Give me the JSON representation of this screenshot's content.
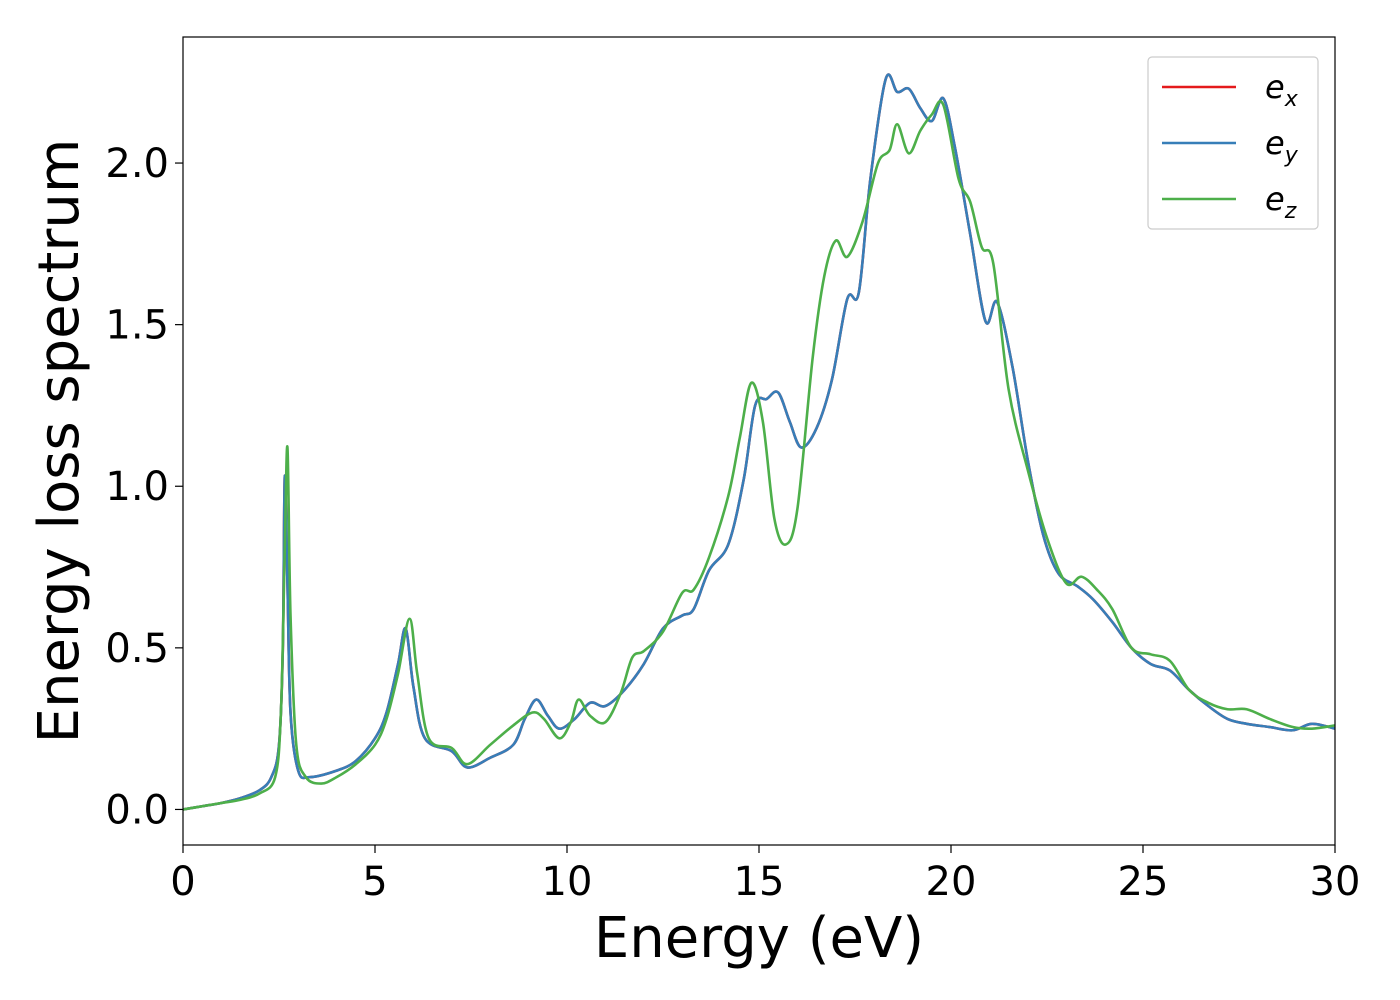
{
  "chart_data": {
    "type": "line",
    "title": "",
    "xlabel": "Energy (eV)",
    "ylabel": "Energy loss spectrum",
    "xlim": [
      0,
      30
    ],
    "ylim": [
      -0.11,
      2.39
    ],
    "xticks": [
      0,
      5,
      10,
      15,
      20,
      25,
      30
    ],
    "xtick_labels": [
      "0",
      "5",
      "10",
      "15",
      "20",
      "25",
      "30"
    ],
    "yticks": [
      0.0,
      0.5,
      1.0,
      1.5,
      2.0
    ],
    "ytick_labels": [
      "0.0",
      "0.5",
      "1.0",
      "1.5",
      "2.0"
    ],
    "grid": false,
    "legend_position": "top-right",
    "series": [
      {
        "name": "e",
        "subscript": "x",
        "color": "#e41a1c",
        "points": [
          [
            0,
            0
          ],
          [
            0.5,
            0.01
          ],
          [
            1,
            0.02
          ],
          [
            1.5,
            0.035
          ],
          [
            2,
            0.06
          ],
          [
            2.3,
            0.1
          ],
          [
            2.5,
            0.2
          ],
          [
            2.6,
            0.5
          ],
          [
            2.65,
            1.03
          ],
          [
            2.72,
            0.7
          ],
          [
            2.8,
            0.3
          ],
          [
            3,
            0.12
          ],
          [
            3.3,
            0.1
          ],
          [
            4,
            0.12
          ],
          [
            4.5,
            0.15
          ],
          [
            5,
            0.22
          ],
          [
            5.3,
            0.3
          ],
          [
            5.6,
            0.45
          ],
          [
            5.8,
            0.56
          ],
          [
            6,
            0.38
          ],
          [
            6.3,
            0.22
          ],
          [
            7,
            0.18
          ],
          [
            7.4,
            0.13
          ],
          [
            8,
            0.16
          ],
          [
            8.6,
            0.2
          ],
          [
            8.9,
            0.28
          ],
          [
            9.2,
            0.34
          ],
          [
            9.5,
            0.29
          ],
          [
            9.8,
            0.25
          ],
          [
            10.2,
            0.28
          ],
          [
            10.6,
            0.33
          ],
          [
            11,
            0.32
          ],
          [
            11.5,
            0.37
          ],
          [
            12,
            0.45
          ],
          [
            12.5,
            0.56
          ],
          [
            13,
            0.6
          ],
          [
            13.3,
            0.62
          ],
          [
            13.7,
            0.74
          ],
          [
            14.2,
            0.82
          ],
          [
            14.6,
            1.02
          ],
          [
            14.9,
            1.25
          ],
          [
            15.2,
            1.27
          ],
          [
            15.5,
            1.29
          ],
          [
            15.8,
            1.2
          ],
          [
            16.1,
            1.12
          ],
          [
            16.5,
            1.18
          ],
          [
            16.9,
            1.33
          ],
          [
            17.3,
            1.58
          ],
          [
            17.6,
            1.6
          ],
          [
            17.9,
            1.95
          ],
          [
            18.3,
            2.26
          ],
          [
            18.6,
            2.22
          ],
          [
            18.9,
            2.23
          ],
          [
            19.2,
            2.17
          ],
          [
            19.5,
            2.13
          ],
          [
            19.8,
            2.2
          ],
          [
            20.1,
            2.05
          ],
          [
            20.5,
            1.78
          ],
          [
            20.9,
            1.51
          ],
          [
            21.2,
            1.57
          ],
          [
            21.6,
            1.37
          ],
          [
            22,
            1.08
          ],
          [
            22.4,
            0.85
          ],
          [
            22.8,
            0.73
          ],
          [
            23.3,
            0.69
          ],
          [
            23.7,
            0.65
          ],
          [
            24.2,
            0.58
          ],
          [
            24.7,
            0.5
          ],
          [
            25.2,
            0.45
          ],
          [
            25.7,
            0.43
          ],
          [
            26.2,
            0.37
          ],
          [
            26.7,
            0.32
          ],
          [
            27.2,
            0.28
          ],
          [
            27.7,
            0.265
          ],
          [
            28.3,
            0.255
          ],
          [
            28.9,
            0.245
          ],
          [
            29.4,
            0.265
          ],
          [
            30,
            0.25
          ]
        ]
      },
      {
        "name": "e",
        "subscript": "y",
        "color": "#377eb8",
        "points": [
          [
            0,
            0
          ],
          [
            0.5,
            0.01
          ],
          [
            1,
            0.02
          ],
          [
            1.5,
            0.035
          ],
          [
            2,
            0.06
          ],
          [
            2.3,
            0.1
          ],
          [
            2.5,
            0.2
          ],
          [
            2.6,
            0.5
          ],
          [
            2.65,
            1.03
          ],
          [
            2.72,
            0.7
          ],
          [
            2.8,
            0.3
          ],
          [
            3,
            0.12
          ],
          [
            3.3,
            0.1
          ],
          [
            4,
            0.12
          ],
          [
            4.5,
            0.15
          ],
          [
            5,
            0.22
          ],
          [
            5.3,
            0.3
          ],
          [
            5.6,
            0.45
          ],
          [
            5.8,
            0.56
          ],
          [
            6,
            0.38
          ],
          [
            6.3,
            0.22
          ],
          [
            7,
            0.18
          ],
          [
            7.4,
            0.13
          ],
          [
            8,
            0.16
          ],
          [
            8.6,
            0.2
          ],
          [
            8.9,
            0.28
          ],
          [
            9.2,
            0.34
          ],
          [
            9.5,
            0.29
          ],
          [
            9.8,
            0.25
          ],
          [
            10.2,
            0.28
          ],
          [
            10.6,
            0.33
          ],
          [
            11,
            0.32
          ],
          [
            11.5,
            0.37
          ],
          [
            12,
            0.45
          ],
          [
            12.5,
            0.56
          ],
          [
            13,
            0.6
          ],
          [
            13.3,
            0.62
          ],
          [
            13.7,
            0.74
          ],
          [
            14.2,
            0.82
          ],
          [
            14.6,
            1.02
          ],
          [
            14.9,
            1.25
          ],
          [
            15.2,
            1.27
          ],
          [
            15.5,
            1.29
          ],
          [
            15.8,
            1.2
          ],
          [
            16.1,
            1.12
          ],
          [
            16.5,
            1.18
          ],
          [
            16.9,
            1.33
          ],
          [
            17.3,
            1.58
          ],
          [
            17.6,
            1.6
          ],
          [
            17.9,
            1.95
          ],
          [
            18.3,
            2.26
          ],
          [
            18.6,
            2.22
          ],
          [
            18.9,
            2.23
          ],
          [
            19.2,
            2.17
          ],
          [
            19.5,
            2.13
          ],
          [
            19.8,
            2.2
          ],
          [
            20.1,
            2.05
          ],
          [
            20.5,
            1.78
          ],
          [
            20.9,
            1.51
          ],
          [
            21.2,
            1.57
          ],
          [
            21.6,
            1.37
          ],
          [
            22,
            1.08
          ],
          [
            22.4,
            0.85
          ],
          [
            22.8,
            0.73
          ],
          [
            23.3,
            0.69
          ],
          [
            23.7,
            0.65
          ],
          [
            24.2,
            0.58
          ],
          [
            24.7,
            0.5
          ],
          [
            25.2,
            0.45
          ],
          [
            25.7,
            0.43
          ],
          [
            26.2,
            0.37
          ],
          [
            26.7,
            0.32
          ],
          [
            27.2,
            0.28
          ],
          [
            27.7,
            0.265
          ],
          [
            28.3,
            0.255
          ],
          [
            28.9,
            0.245
          ],
          [
            29.4,
            0.265
          ],
          [
            30,
            0.25
          ]
        ]
      },
      {
        "name": "e",
        "subscript": "z",
        "color": "#4daf4a",
        "points": [
          [
            0,
            0
          ],
          [
            0.5,
            0.01
          ],
          [
            1,
            0.02
          ],
          [
            1.5,
            0.03
          ],
          [
            2,
            0.05
          ],
          [
            2.4,
            0.1
          ],
          [
            2.55,
            0.3
          ],
          [
            2.65,
            0.8
          ],
          [
            2.72,
            1.12
          ],
          [
            2.8,
            0.6
          ],
          [
            2.95,
            0.2
          ],
          [
            3.2,
            0.1
          ],
          [
            3.6,
            0.08
          ],
          [
            4,
            0.1
          ],
          [
            4.5,
            0.14
          ],
          [
            5,
            0.2
          ],
          [
            5.3,
            0.28
          ],
          [
            5.6,
            0.42
          ],
          [
            5.9,
            0.59
          ],
          [
            6.1,
            0.42
          ],
          [
            6.4,
            0.22
          ],
          [
            7,
            0.19
          ],
          [
            7.4,
            0.14
          ],
          [
            8,
            0.2
          ],
          [
            8.6,
            0.26
          ],
          [
            9.1,
            0.3
          ],
          [
            9.4,
            0.28
          ],
          [
            9.8,
            0.22
          ],
          [
            10.1,
            0.27
          ],
          [
            10.3,
            0.34
          ],
          [
            10.6,
            0.29
          ],
          [
            11,
            0.27
          ],
          [
            11.4,
            0.36
          ],
          [
            11.7,
            0.47
          ],
          [
            12,
            0.49
          ],
          [
            12.5,
            0.55
          ],
          [
            13,
            0.67
          ],
          [
            13.3,
            0.68
          ],
          [
            13.7,
            0.78
          ],
          [
            14.2,
            0.97
          ],
          [
            14.5,
            1.15
          ],
          [
            14.8,
            1.32
          ],
          [
            15.1,
            1.2
          ],
          [
            15.4,
            0.9
          ],
          [
            15.7,
            0.82
          ],
          [
            16,
            0.93
          ],
          [
            16.4,
            1.4
          ],
          [
            16.7,
            1.65
          ],
          [
            17,
            1.76
          ],
          [
            17.3,
            1.71
          ],
          [
            17.7,
            1.82
          ],
          [
            18.1,
            2.0
          ],
          [
            18.4,
            2.04
          ],
          [
            18.6,
            2.12
          ],
          [
            18.9,
            2.03
          ],
          [
            19.2,
            2.1
          ],
          [
            19.5,
            2.15
          ],
          [
            19.8,
            2.18
          ],
          [
            20.2,
            1.95
          ],
          [
            20.5,
            1.88
          ],
          [
            20.8,
            1.74
          ],
          [
            21.1,
            1.69
          ],
          [
            21.5,
            1.3
          ],
          [
            22,
            1.05
          ],
          [
            22.5,
            0.84
          ],
          [
            23,
            0.7
          ],
          [
            23.4,
            0.72
          ],
          [
            23.8,
            0.68
          ],
          [
            24.2,
            0.62
          ],
          [
            24.7,
            0.5
          ],
          [
            25.2,
            0.48
          ],
          [
            25.7,
            0.46
          ],
          [
            26.2,
            0.37
          ],
          [
            26.7,
            0.33
          ],
          [
            27.2,
            0.31
          ],
          [
            27.7,
            0.31
          ],
          [
            28.3,
            0.28
          ],
          [
            28.9,
            0.255
          ],
          [
            29.4,
            0.25
          ],
          [
            30,
            0.26
          ]
        ]
      }
    ]
  }
}
